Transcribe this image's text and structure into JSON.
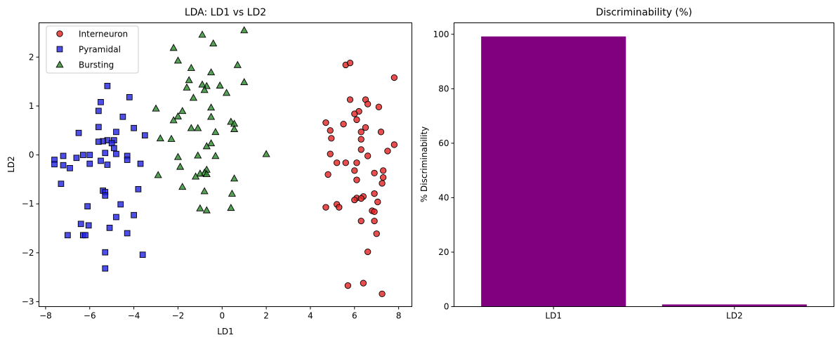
{
  "chart_data": [
    {
      "type": "scatter",
      "title": "LDA: LD1 vs LD2",
      "xlabel": "LD1",
      "ylabel": "LD2",
      "xlim": [
        -8.3,
        8.6
      ],
      "ylim": [
        -3.1,
        2.7
      ],
      "xticks": [
        -8,
        -6,
        -4,
        -2,
        0,
        2,
        4,
        6,
        8
      ],
      "yticks": [
        -3,
        -2,
        -1,
        0,
        1,
        2
      ],
      "grid": false,
      "legend_position": "upper-left",
      "series": [
        {
          "name": "Interneuron",
          "marker": "circle",
          "color": "#e32222",
          "points": [
            [
              5.6,
              1.84
            ],
            [
              5.8,
              1.88
            ],
            [
              7.8,
              1.58
            ],
            [
              5.8,
              1.13
            ],
            [
              6.5,
              1.13
            ],
            [
              6.6,
              1.04
            ],
            [
              7.1,
              0.98
            ],
            [
              6.2,
              0.89
            ],
            [
              6.0,
              0.84
            ],
            [
              6.1,
              0.72
            ],
            [
              4.7,
              0.66
            ],
            [
              5.5,
              0.63
            ],
            [
              6.5,
              0.56
            ],
            [
              4.9,
              0.5
            ],
            [
              6.3,
              0.47
            ],
            [
              7.2,
              0.47
            ],
            [
              4.95,
              0.34
            ],
            [
              6.3,
              0.32
            ],
            [
              7.8,
              0.21
            ],
            [
              6.3,
              0.11
            ],
            [
              7.5,
              0.08
            ],
            [
              4.9,
              0.02
            ],
            [
              6.6,
              -0.02
            ],
            [
              5.2,
              -0.16
            ],
            [
              5.6,
              -0.16
            ],
            [
              6.1,
              -0.16
            ],
            [
              6.0,
              -0.32
            ],
            [
              7.3,
              -0.32
            ],
            [
              4.8,
              -0.4
            ],
            [
              6.9,
              -0.37
            ],
            [
              7.3,
              -0.46
            ],
            [
              6.1,
              -0.51
            ],
            [
              7.25,
              -0.58
            ],
            [
              6.9,
              -0.79
            ],
            [
              6.4,
              -0.85
            ],
            [
              6.1,
              -0.88
            ],
            [
              6.3,
              -0.89
            ],
            [
              6.0,
              -0.92
            ],
            [
              7.05,
              -0.96
            ],
            [
              5.2,
              -1.01
            ],
            [
              4.7,
              -1.07
            ],
            [
              5.3,
              -1.07
            ],
            [
              6.8,
              -1.14
            ],
            [
              6.9,
              -1.16
            ],
            [
              6.9,
              -1.35
            ],
            [
              6.3,
              -1.35
            ],
            [
              7.0,
              -1.61
            ],
            [
              6.6,
              -1.98
            ],
            [
              6.4,
              -2.62
            ],
            [
              5.7,
              -2.67
            ],
            [
              7.25,
              -2.84
            ]
          ]
        },
        {
          "name": "Pyramidal",
          "marker": "square",
          "color": "#2222e3",
          "points": [
            [
              -5.2,
              1.41
            ],
            [
              -4.2,
              1.18
            ],
            [
              -5.5,
              1.08
            ],
            [
              -5.6,
              0.9
            ],
            [
              -4.5,
              0.78
            ],
            [
              -5.6,
              0.57
            ],
            [
              -4.0,
              0.55
            ],
            [
              -6.5,
              0.45
            ],
            [
              -4.8,
              0.47
            ],
            [
              -3.5,
              0.4
            ],
            [
              -5.2,
              0.3
            ],
            [
              -4.9,
              0.3
            ],
            [
              -5.4,
              0.28
            ],
            [
              -5.6,
              0.27
            ],
            [
              -5.0,
              0.24
            ],
            [
              -4.9,
              0.14
            ],
            [
              -5.3,
              0.04
            ],
            [
              -4.8,
              0.02
            ],
            [
              -6.3,
              0.0
            ],
            [
              -6.0,
              0.0
            ],
            [
              -7.2,
              -0.02
            ],
            [
              -4.3,
              -0.02
            ],
            [
              -6.6,
              -0.06
            ],
            [
              -4.3,
              -0.1
            ],
            [
              -7.6,
              -0.1
            ],
            [
              -5.5,
              -0.12
            ],
            [
              -7.6,
              -0.19
            ],
            [
              -6.0,
              -0.18
            ],
            [
              -3.7,
              -0.18
            ],
            [
              -7.2,
              -0.21
            ],
            [
              -5.2,
              -0.2
            ],
            [
              -6.9,
              -0.27
            ],
            [
              -7.3,
              -0.59
            ],
            [
              -3.8,
              -0.7
            ],
            [
              -5.4,
              -0.73
            ],
            [
              -5.3,
              -0.76
            ],
            [
              -5.3,
              -0.83
            ],
            [
              -4.6,
              -1.01
            ],
            [
              -6.1,
              -1.05
            ],
            [
              -4.0,
              -1.23
            ],
            [
              -4.8,
              -1.27
            ],
            [
              -6.4,
              -1.41
            ],
            [
              -6.05,
              -1.44
            ],
            [
              -5.1,
              -1.49
            ],
            [
              -4.3,
              -1.6
            ],
            [
              -7.0,
              -1.64
            ],
            [
              -6.3,
              -1.64
            ],
            [
              -6.2,
              -1.64
            ],
            [
              -5.3,
              -1.99
            ],
            [
              -3.6,
              -2.04
            ],
            [
              -5.3,
              -2.32
            ]
          ]
        },
        {
          "name": "Bursting",
          "marker": "triangle",
          "color": "#2a8a2a",
          "points": [
            [
              1.0,
              2.55
            ],
            [
              -0.9,
              2.46
            ],
            [
              -0.4,
              2.28
            ],
            [
              -2.2,
              2.19
            ],
            [
              -2.0,
              1.93
            ],
            [
              0.7,
              1.84
            ],
            [
              -0.5,
              1.69
            ],
            [
              -1.4,
              1.78
            ],
            [
              1.0,
              1.49
            ],
            [
              -1.5,
              1.53
            ],
            [
              -0.7,
              1.41
            ],
            [
              -0.1,
              1.42
            ],
            [
              -1.6,
              1.38
            ],
            [
              -0.9,
              1.44
            ],
            [
              -0.8,
              1.33
            ],
            [
              0.2,
              1.27
            ],
            [
              -1.3,
              1.17
            ],
            [
              -3.0,
              0.95
            ],
            [
              -0.5,
              0.97
            ],
            [
              -1.8,
              0.9
            ],
            [
              -2.0,
              0.79
            ],
            [
              -0.5,
              0.78
            ],
            [
              -2.2,
              0.71
            ],
            [
              0.4,
              0.68
            ],
            [
              0.55,
              0.64
            ],
            [
              0.55,
              0.53
            ],
            [
              -1.4,
              0.55
            ],
            [
              -1.1,
              0.55
            ],
            [
              -0.3,
              0.47
            ],
            [
              -2.8,
              0.34
            ],
            [
              -2.3,
              0.33
            ],
            [
              -0.5,
              0.24
            ],
            [
              -0.7,
              0.18
            ],
            [
              2.0,
              0.02
            ],
            [
              -1.1,
              -0.01
            ],
            [
              -0.3,
              -0.02
            ],
            [
              -2.0,
              -0.04
            ],
            [
              -1.9,
              -0.24
            ],
            [
              -0.7,
              -0.3
            ],
            [
              -0.8,
              -0.36
            ],
            [
              -1.0,
              -0.38
            ],
            [
              -0.7,
              -0.39
            ],
            [
              -2.9,
              -0.41
            ],
            [
              -1.2,
              -0.44
            ],
            [
              0.55,
              -0.48
            ],
            [
              -1.8,
              -0.65
            ],
            [
              -0.8,
              -0.74
            ],
            [
              0.45,
              -0.79
            ],
            [
              -1.0,
              -1.09
            ],
            [
              0.4,
              -1.08
            ],
            [
              -0.7,
              -1.13
            ]
          ]
        }
      ]
    },
    {
      "type": "bar",
      "title": "Discriminability (%)",
      "xlabel": "",
      "ylabel": "% Discriminability",
      "categories": [
        "LD1",
        "LD2"
      ],
      "values": [
        99.2,
        0.8
      ],
      "ylim": [
        0,
        104.2
      ],
      "yticks": [
        0,
        20,
        40,
        60,
        80,
        100
      ],
      "bar_color": "#800080",
      "grid": false
    }
  ]
}
